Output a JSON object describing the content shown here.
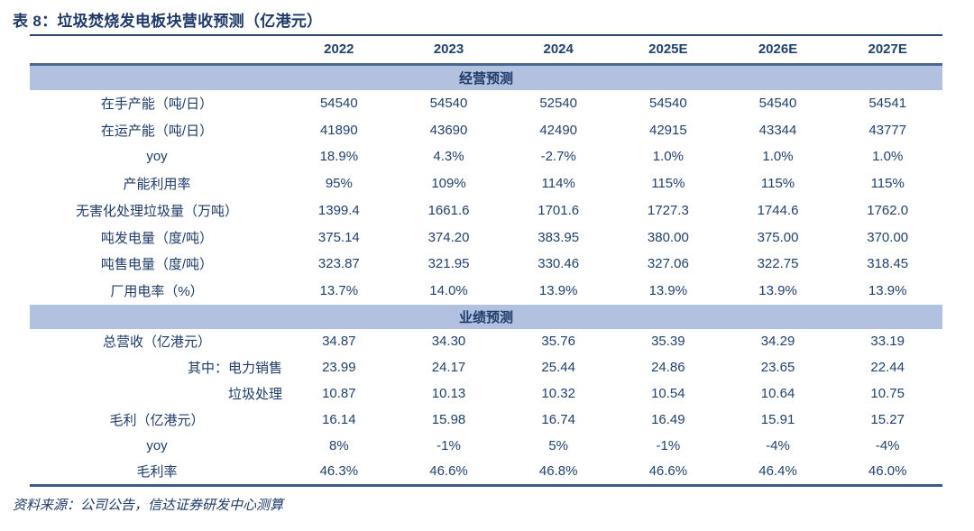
{
  "title": "表 8：垃圾焚烧发电板块营收预测（亿港元）",
  "columns": [
    "2022",
    "2023",
    "2024",
    "2025E",
    "2026E",
    "2027E"
  ],
  "sections": [
    {
      "name": "经营预测",
      "rows": [
        {
          "label": "在手产能（吨/日）",
          "align": "center",
          "values": [
            "54540",
            "54540",
            "52540",
            "54540",
            "54540",
            "54541"
          ]
        },
        {
          "label": "在运产能（吨/日）",
          "align": "center",
          "values": [
            "41890",
            "43690",
            "42490",
            "42915",
            "43344",
            "43777"
          ]
        },
        {
          "label": "yoy",
          "align": "center",
          "values": [
            "18.9%",
            "4.3%",
            "-2.7%",
            "1.0%",
            "1.0%",
            "1.0%"
          ]
        },
        {
          "label": "产能利用率",
          "align": "center",
          "values": [
            "95%",
            "109%",
            "114%",
            "115%",
            "115%",
            "115%"
          ]
        },
        {
          "label": "无害化处理垃圾量（万吨）",
          "align": "center",
          "values": [
            "1399.4",
            "1661.6",
            "1701.6",
            "1727.3",
            "1744.6",
            "1762.0"
          ]
        },
        {
          "label": "吨发电量（度/吨）",
          "align": "center",
          "values": [
            "375.14",
            "374.20",
            "383.95",
            "380.00",
            "375.00",
            "370.00"
          ]
        },
        {
          "label": "吨售电量（度/吨）",
          "align": "center",
          "values": [
            "323.87",
            "321.95",
            "330.46",
            "327.06",
            "322.75",
            "318.45"
          ]
        },
        {
          "label": "厂用电率（%）",
          "align": "center",
          "values": [
            "13.7%",
            "14.0%",
            "13.9%",
            "13.9%",
            "13.9%",
            "13.9%"
          ]
        }
      ]
    },
    {
      "name": "业绩预测",
      "rows": [
        {
          "label": "总营收（亿港元）",
          "align": "center",
          "values": [
            "34.87",
            "34.30",
            "35.76",
            "35.39",
            "34.29",
            "33.19"
          ]
        },
        {
          "label": "其中：电力销售",
          "align": "right",
          "values": [
            "23.99",
            "24.17",
            "25.44",
            "24.86",
            "23.65",
            "22.44"
          ]
        },
        {
          "label": "垃圾处理",
          "align": "right",
          "values": [
            "10.87",
            "10.13",
            "10.32",
            "10.54",
            "10.64",
            "10.75"
          ]
        },
        {
          "label": "毛利（亿港元）",
          "align": "center",
          "values": [
            "16.14",
            "15.98",
            "16.74",
            "16.49",
            "15.91",
            "15.27"
          ]
        },
        {
          "label": "yoy",
          "align": "center",
          "values": [
            "8%",
            "-1%",
            "5%",
            "-1%",
            "-4%",
            "-4%"
          ]
        },
        {
          "label": "毛利率",
          "align": "center",
          "values": [
            "46.3%",
            "46.6%",
            "46.8%",
            "46.6%",
            "46.4%",
            "46.0%"
          ]
        }
      ]
    }
  ],
  "source": "资料来源：公司公告，信达证券研发中心测算",
  "colors": {
    "text_navy": "#1F3864",
    "band_fill": "#B3C1E1",
    "band_top_border": "#49688F",
    "title_rule": "#24466F",
    "bottom_rule": "#3C5A8A"
  }
}
